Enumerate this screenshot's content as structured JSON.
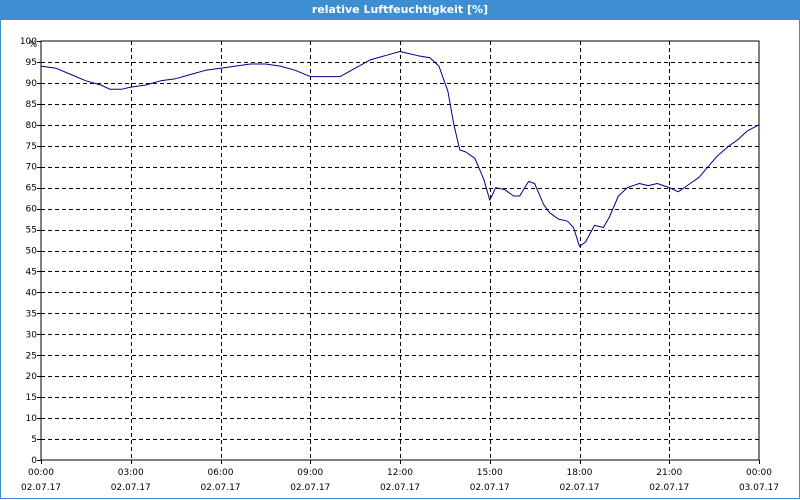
{
  "chart_data": {
    "type": "line",
    "title": "relative Luftfeuchtigkeit [%]",
    "ylabel": "%",
    "xlabel": "",
    "ylim": [
      0,
      100
    ],
    "xlim": [
      0,
      24
    ],
    "grid": true,
    "y_ticks": [
      0,
      5,
      10,
      15,
      20,
      25,
      30,
      35,
      40,
      45,
      50,
      55,
      60,
      65,
      70,
      75,
      80,
      85,
      90,
      95,
      100
    ],
    "x_ticks": [
      {
        "time": "00:00",
        "date": "02.07.17"
      },
      {
        "time": "03:00",
        "date": "02.07.17"
      },
      {
        "time": "06:00",
        "date": "02.07.17"
      },
      {
        "time": "09:00",
        "date": "02.07.17"
      },
      {
        "time": "12:00",
        "date": "02.07.17"
      },
      {
        "time": "15:00",
        "date": "02.07.17"
      },
      {
        "time": "18:00",
        "date": "02.07.17"
      },
      {
        "time": "21:00",
        "date": "02.07.17"
      },
      {
        "time": "00:00",
        "date": "03.07.17"
      }
    ],
    "series": [
      {
        "color": "#00008b",
        "x": [
          0,
          0.5,
          1,
          1.5,
          2,
          2.3,
          2.7,
          3,
          3.5,
          4,
          4.5,
          5,
          5.5,
          6,
          6.5,
          7,
          7.5,
          8,
          8.5,
          9,
          9.5,
          10,
          10.5,
          11,
          11.5,
          12,
          12.3,
          12.6,
          13,
          13.3,
          13.6,
          13.8,
          14,
          14.2,
          14.5,
          14.8,
          15,
          15.2,
          15.5,
          15.8,
          16,
          16.3,
          16.5,
          16.8,
          17,
          17.3,
          17.6,
          17.8,
          18,
          18.2,
          18.5,
          18.8,
          19,
          19.3,
          19.6,
          20,
          20.3,
          20.6,
          21,
          21.3,
          21.6,
          22,
          22.3,
          22.6,
          23,
          23.3,
          23.6,
          24
        ],
        "values": [
          94,
          93.5,
          92,
          90.5,
          89.5,
          88.5,
          88.5,
          89,
          89.5,
          90.5,
          91,
          92,
          93,
          93.5,
          94,
          94.5,
          94.5,
          94,
          93,
          91.5,
          91.5,
          91.5,
          93.5,
          95.5,
          96.5,
          97.5,
          97,
          96.5,
          96,
          94,
          88,
          80,
          74,
          73.5,
          72,
          67,
          62,
          65,
          64.5,
          63,
          63,
          66.5,
          66,
          61,
          59,
          57.5,
          57,
          55.5,
          51,
          52,
          56,
          55.5,
          58,
          63,
          65,
          66,
          65.5,
          66,
          65,
          64,
          65.5,
          67.5,
          70,
          72.5,
          75,
          76.5,
          78.5,
          80
        ]
      }
    ]
  }
}
